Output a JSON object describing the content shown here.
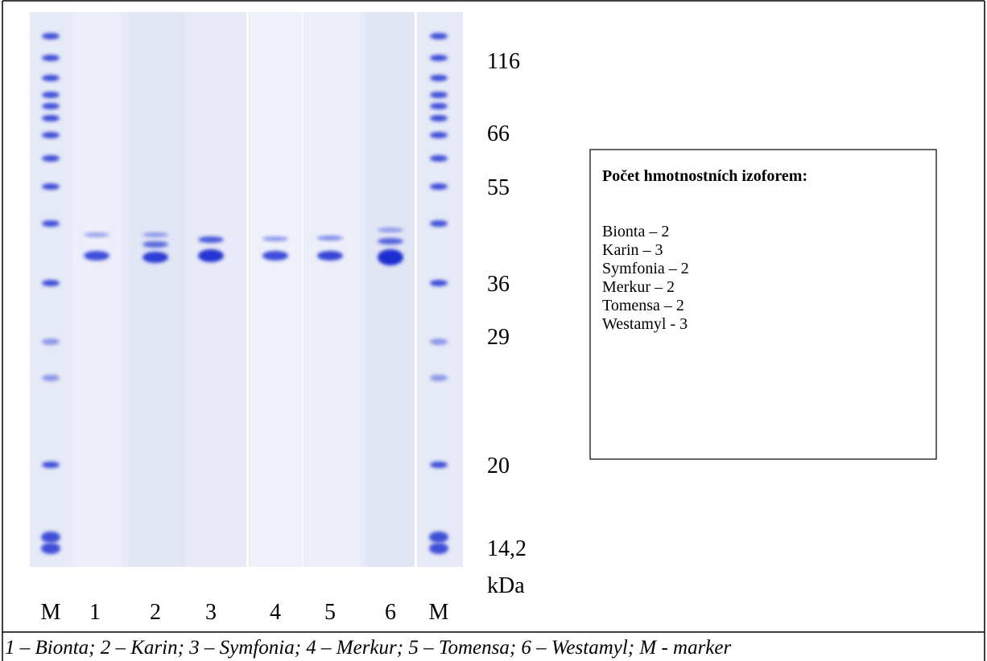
{
  "lane_labels": [
    "M",
    "1",
    "2",
    "3",
    "4",
    "5",
    "6",
    "M"
  ],
  "marker_labels": [
    "116",
    "66",
    "55",
    "36",
    "29",
    "20",
    "14,2",
    "kDa"
  ],
  "info_box": {
    "title": "Počet  hmotnostních izoforem:",
    "lines": [
      "Bionta – 2",
      "Karin – 3",
      "Symfonia – 2",
      "Merkur – 2",
      "Tomensa – 2",
      "Westamyl - 3"
    ]
  },
  "caption": "1 – Bionta; 2 – Karin; 3 – Symfonia; 4 – Merkur; 5 – Tomensa; 6 – Westamyl; M - marker"
}
